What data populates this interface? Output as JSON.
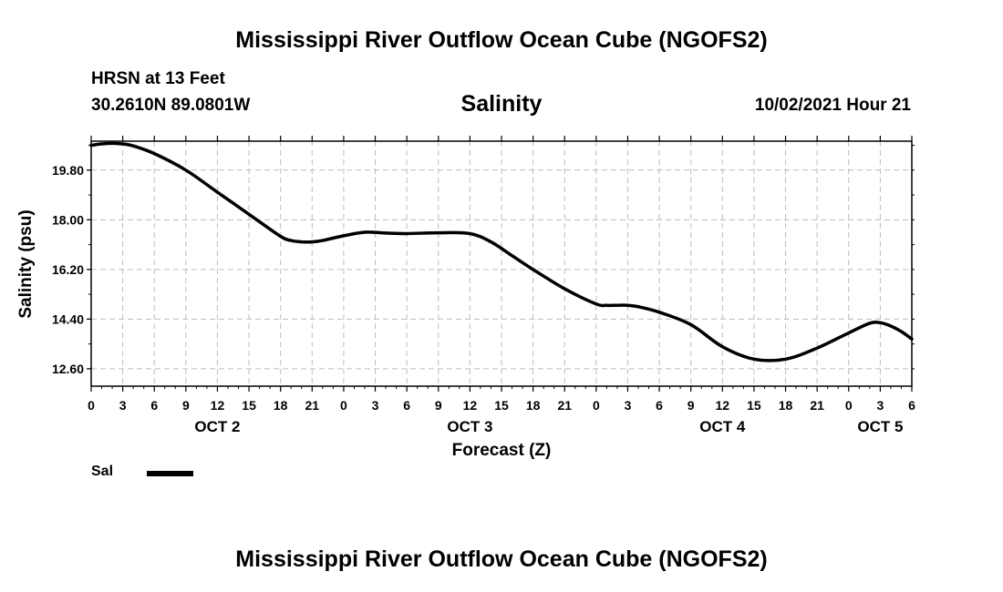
{
  "header": {
    "title": "Mississippi River Outflow Ocean Cube (NGOFS2)",
    "station": "HRSN at 13 Feet",
    "coords": "30.2610N  89.0801W",
    "chart_title": "Salinity",
    "run_time": "10/02/2021 Hour 21"
  },
  "footer": {
    "title": "Mississippi River Outflow Ocean Cube (NGOFS2)"
  },
  "legend": {
    "label": "Sal",
    "color": "#000000"
  },
  "chart_data": {
    "type": "line",
    "title": "Salinity",
    "xlabel": "Forecast (Z)",
    "ylabel": "Salinity (psu)",
    "xlim": [
      0,
      78
    ],
    "ylim": [
      11.97,
      20.85
    ],
    "yticks": [
      "12.60",
      "14.40",
      "16.20",
      "18.00",
      "19.80"
    ],
    "xtick_labels": [
      "0",
      "3",
      "6",
      "9",
      "12",
      "15",
      "18",
      "21",
      "0",
      "3",
      "6",
      "9",
      "12",
      "15",
      "18",
      "21",
      "0",
      "3",
      "6",
      "9",
      "12",
      "15",
      "18",
      "21",
      "0",
      "3",
      "6"
    ],
    "day_labels": [
      {
        "hour": 12,
        "label": "OCT 2"
      },
      {
        "hour": 36,
        "label": "OCT 3"
      },
      {
        "hour": 60,
        "label": "OCT 4"
      },
      {
        "hour": 75,
        "label": "OCT 5"
      }
    ],
    "grid": true,
    "series": [
      {
        "name": "Sal",
        "color": "#000000",
        "x": [
          0,
          1,
          2,
          3,
          4,
          6,
          9,
          12,
          15,
          18,
          19,
          20,
          21,
          22,
          24,
          26,
          28,
          30,
          33,
          36,
          38,
          40,
          42,
          45,
          48,
          49,
          50,
          51,
          52,
          54,
          57,
          60,
          63,
          66,
          69,
          72,
          74,
          75,
          76,
          77,
          78
        ],
        "y": [
          20.7,
          20.75,
          20.77,
          20.75,
          20.68,
          20.4,
          19.8,
          19.0,
          18.2,
          17.4,
          17.25,
          17.2,
          17.2,
          17.25,
          17.42,
          17.55,
          17.52,
          17.5,
          17.53,
          17.5,
          17.2,
          16.7,
          16.2,
          15.5,
          14.95,
          14.9,
          14.9,
          14.9,
          14.85,
          14.65,
          14.2,
          13.4,
          12.95,
          12.95,
          13.35,
          13.9,
          14.25,
          14.27,
          14.15,
          13.95,
          13.68
        ]
      }
    ]
  }
}
